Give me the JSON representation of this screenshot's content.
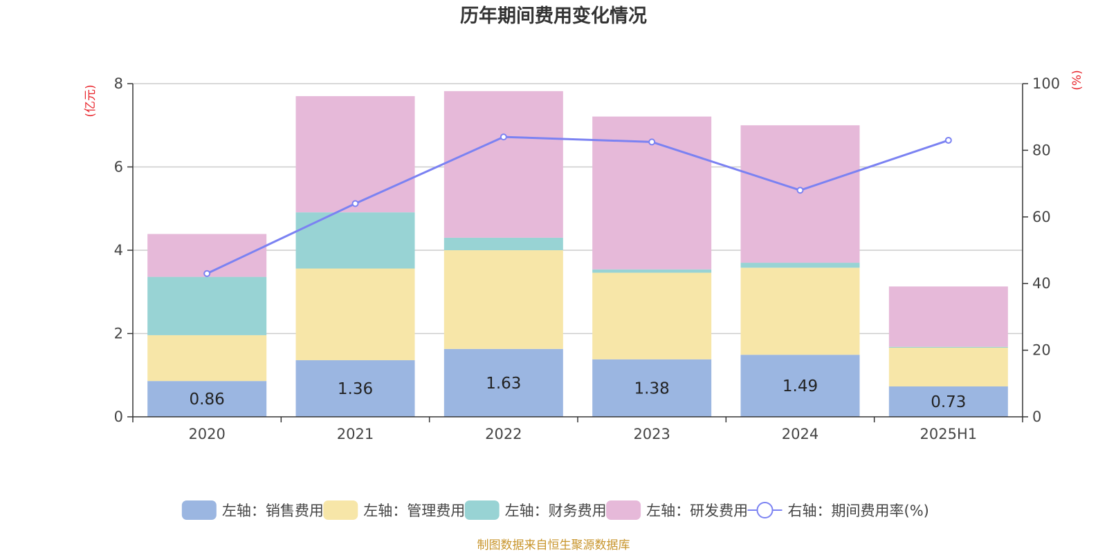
{
  "chart_data": {
    "type": "bar",
    "stacked": true,
    "title": "历年期间费用变化情况",
    "categories": [
      "2020",
      "2021",
      "2022",
      "2023",
      "2024",
      "2025H1"
    ],
    "left_axis": {
      "unit": "(亿元)",
      "ylim": [
        0,
        8
      ],
      "ticks": [
        "0",
        "2",
        "4",
        "6",
        "8"
      ]
    },
    "right_axis": {
      "unit": "(%)",
      "ylim": [
        0,
        100
      ],
      "ticks": [
        "0",
        "20",
        "40",
        "60",
        "80",
        "100"
      ]
    },
    "series": [
      {
        "name": "左轴：销售费用",
        "axis": "left",
        "color": "#9bb6e1",
        "values": [
          0.86,
          1.36,
          1.63,
          1.38,
          1.49,
          0.73
        ],
        "labels": [
          "0.86",
          "1.36",
          "1.63",
          "1.38",
          "1.49",
          "0.73"
        ]
      },
      {
        "name": "左轴：管理费用",
        "axis": "left",
        "color": "#f7e6a8",
        "values": [
          1.1,
          2.2,
          2.37,
          2.08,
          2.09,
          0.93
        ]
      },
      {
        "name": "左轴：财务费用",
        "axis": "left",
        "color": "#98d3d4",
        "values": [
          1.4,
          1.35,
          0.3,
          0.08,
          0.12,
          0.02
        ]
      },
      {
        "name": "左轴：研发费用",
        "axis": "left",
        "color": "#e6b9d9",
        "values": [
          1.03,
          2.79,
          3.52,
          3.67,
          3.3,
          1.45
        ]
      }
    ],
    "line": {
      "name": "右轴：期间费用率(%)",
      "axis": "right",
      "color": "#7b82f2",
      "values": [
        43,
        64,
        84,
        82.5,
        68,
        83
      ]
    },
    "source": "制图数据来自恒生聚源数据库"
  }
}
